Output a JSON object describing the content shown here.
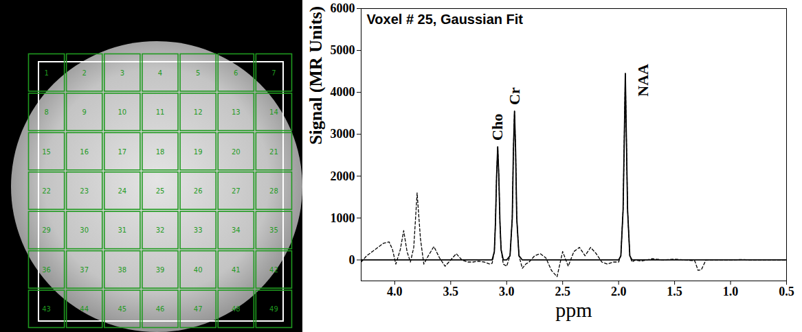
{
  "chart_data": {
    "type": "line",
    "title": "Voxel # 25, Gaussian Fit",
    "x_label": "ppm",
    "y_label": "Signal (MR Units)",
    "x": [
      4.3,
      4.25,
      4.2,
      4.15,
      4.1,
      4.05,
      4.02,
      3.99,
      3.95,
      3.92,
      3.89,
      3.86,
      3.83,
      3.8,
      3.77,
      3.74,
      3.7,
      3.65,
      3.6,
      3.55,
      3.5,
      3.45,
      3.4,
      3.35,
      3.3,
      3.25,
      3.2,
      3.15,
      3.13,
      3.11,
      3.1,
      3.09,
      3.08,
      3.07,
      3.06,
      3.05,
      3.03,
      3.0,
      2.97,
      2.95,
      2.94,
      2.93,
      2.92,
      2.91,
      2.89,
      2.86,
      2.83,
      2.8,
      2.75,
      2.7,
      2.65,
      2.6,
      2.55,
      2.5,
      2.45,
      2.4,
      2.35,
      2.3,
      2.25,
      2.2,
      2.15,
      2.1,
      2.05,
      2.0,
      1.98,
      1.96,
      1.95,
      1.94,
      1.93,
      1.92,
      1.9,
      1.88,
      1.85,
      1.8,
      1.7,
      1.6,
      1.5,
      1.4,
      1.32,
      1.29,
      1.26,
      1.22,
      1.15,
      1.0,
      0.9,
      0.8,
      0.7,
      0.6,
      0.5
    ],
    "series": [
      {
        "color": "#000000",
        "line_style": "dashed",
        "values": [
          -50,
          100,
          200,
          300,
          400,
          430,
          250,
          -100,
          250,
          700,
          200,
          -50,
          300,
          1600,
          500,
          -100,
          100,
          320,
          50,
          -150,
          0,
          150,
          0,
          -50,
          -50,
          -30,
          -50,
          -100,
          -80,
          200,
          900,
          2000,
          2700,
          2000,
          900,
          250,
          -100,
          -150,
          100,
          1000,
          2600,
          3550,
          2600,
          1000,
          100,
          -200,
          -100,
          -50,
          100,
          150,
          50,
          -250,
          -400,
          200,
          -150,
          200,
          300,
          100,
          300,
          150,
          -50,
          -100,
          -50,
          -50,
          100,
          1200,
          2800,
          4450,
          2800,
          1200,
          100,
          -50,
          0,
          -30,
          30,
          0,
          20,
          0,
          -20,
          -250,
          -230,
          0,
          0,
          0,
          10,
          0,
          0,
          0,
          0
        ]
      },
      {
        "color": "#000000",
        "line_style": "solid",
        "values": [
          0,
          0,
          0,
          0,
          0,
          0,
          0,
          0,
          0,
          0,
          0,
          0,
          0,
          0,
          0,
          0,
          0,
          0,
          0,
          0,
          0,
          0,
          0,
          0,
          0,
          0,
          0,
          0,
          0,
          200,
          900,
          2000,
          2700,
          2000,
          900,
          250,
          0,
          0,
          100,
          1000,
          2600,
          3550,
          2600,
          1000,
          100,
          0,
          0,
          0,
          0,
          0,
          0,
          0,
          0,
          0,
          0,
          0,
          0,
          0,
          0,
          0,
          0,
          0,
          0,
          0,
          100,
          1200,
          2800,
          4450,
          2800,
          1200,
          100,
          0,
          0,
          0,
          0,
          0,
          0,
          0,
          0,
          0,
          0,
          0,
          0,
          0,
          0,
          0,
          0,
          0,
          0
        ]
      }
    ],
    "xlim": [
      4.3,
      0.5
    ],
    "ylim": [
      -500,
      6000
    ],
    "xticks": [
      {
        "value": 4,
        "label": "4.0"
      },
      3.5,
      {
        "value": 3,
        "label": "3.0"
      },
      2.5,
      {
        "value": 2,
        "label": "2.0"
      },
      1.5,
      {
        "value": 1,
        "label": "1.0"
      },
      0.5
    ],
    "yticks": [
      0,
      1000,
      2000,
      3000,
      4000,
      5000,
      6000
    ],
    "grid": false,
    "annotations": [
      {
        "text": "Cho",
        "x": 3.08,
        "y": 2850
      },
      {
        "text": "Cr",
        "x": 2.93,
        "y": 3700
      },
      {
        "text": "NAA",
        "x": 1.78,
        "y": 3900
      }
    ]
  },
  "image": {
    "voxel_labels": [
      [
        1,
        2,
        3,
        4,
        5,
        6,
        7
      ],
      [
        8,
        9,
        10,
        11,
        12,
        13,
        14
      ],
      [
        15,
        16,
        17,
        18,
        19,
        20,
        21
      ],
      [
        22,
        23,
        24,
        25,
        26,
        27,
        28
      ],
      [
        29,
        30,
        31,
        32,
        33,
        34,
        35
      ],
      [
        36,
        37,
        38,
        39,
        40,
        41,
        42
      ],
      [
        43,
        44,
        45,
        46,
        47,
        48,
        49
      ]
    ]
  }
}
